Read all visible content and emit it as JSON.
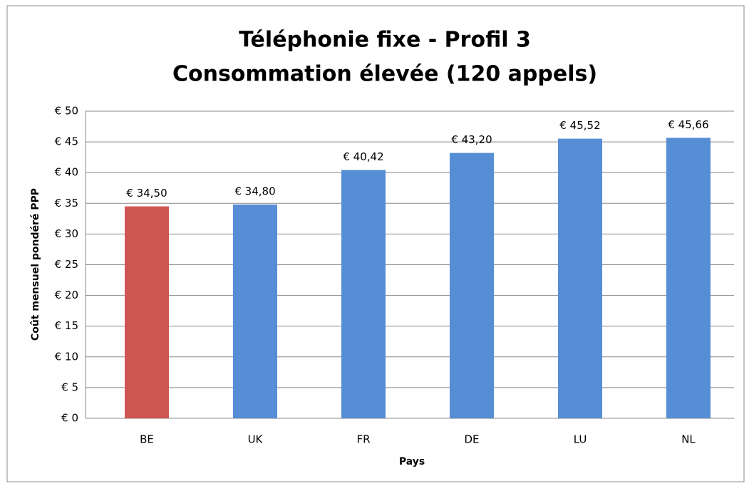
{
  "chart_data": {
    "type": "bar",
    "title": "Téléphonie fixe - Profil 3",
    "subtitle": "Consommation élevée (120 appels)",
    "xlabel": "Pays",
    "ylabel": "Coût mensuel pondéré PPP",
    "categories": [
      "BE",
      "UK",
      "FR",
      "DE",
      "LU",
      "NL"
    ],
    "values": [
      34.5,
      34.8,
      40.42,
      43.2,
      45.52,
      45.66
    ],
    "value_labels": [
      "€ 34,50",
      "€ 34,80",
      "€ 40,42",
      "€ 43,20",
      "€ 45,52",
      "€ 45,66"
    ],
    "colors": [
      "#cd5652",
      "#558ed5",
      "#558ed5",
      "#558ed5",
      "#558ed5",
      "#558ed5"
    ],
    "ylim": [
      0,
      50
    ],
    "yticks": [
      {
        "value": 0,
        "label": "€ 0"
      },
      {
        "value": 5,
        "label": "€ 5"
      },
      {
        "value": 10,
        "label": "€ 10"
      },
      {
        "value": 15,
        "label": "€ 15"
      },
      {
        "value": 20,
        "label": "€ 20"
      },
      {
        "value": 25,
        "label": "€ 25"
      },
      {
        "value": 30,
        "label": "€ 30"
      },
      {
        "value": 35,
        "label": "€ 35"
      },
      {
        "value": 40,
        "label": "€ 40"
      },
      {
        "value": 45,
        "label": "€ 45"
      },
      {
        "value": 50,
        "label": "€ 50"
      }
    ],
    "grid": true
  }
}
